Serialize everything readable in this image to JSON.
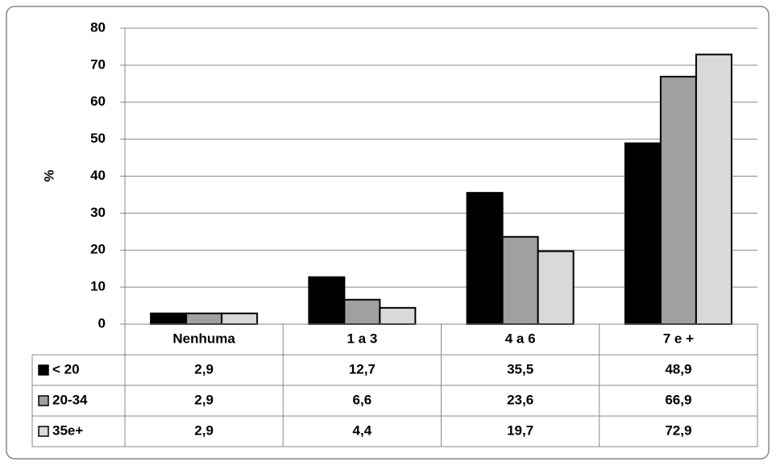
{
  "chart_data": {
    "type": "bar",
    "y_label": "%",
    "categories": [
      "Nenhuma",
      "1 a 3",
      "4 a 6",
      "7 e +"
    ],
    "series": [
      {
        "name": "< 20",
        "color": "#000000",
        "values": [
          2.9,
          12.7,
          35.5,
          48.9
        ],
        "value_labels": [
          "2,9",
          "12,7",
          "35,5",
          "48,9"
        ]
      },
      {
        "name": "20-34",
        "color": "#a0a0a0",
        "values": [
          2.9,
          6.6,
          23.6,
          66.9
        ],
        "value_labels": [
          "2,9",
          "6,6",
          "23,6",
          "66,9"
        ]
      },
      {
        "name": "35e+",
        "color": "#d9d9d9",
        "values": [
          2.9,
          4.4,
          19.7,
          72.9
        ],
        "value_labels": [
          "2,9",
          "4,4",
          "19,7",
          "72,9"
        ]
      }
    ],
    "ylim": [
      0,
      80
    ],
    "yticks": [
      0,
      10,
      20,
      30,
      40,
      50,
      60,
      70,
      80
    ],
    "grid": true,
    "data_table": true
  }
}
